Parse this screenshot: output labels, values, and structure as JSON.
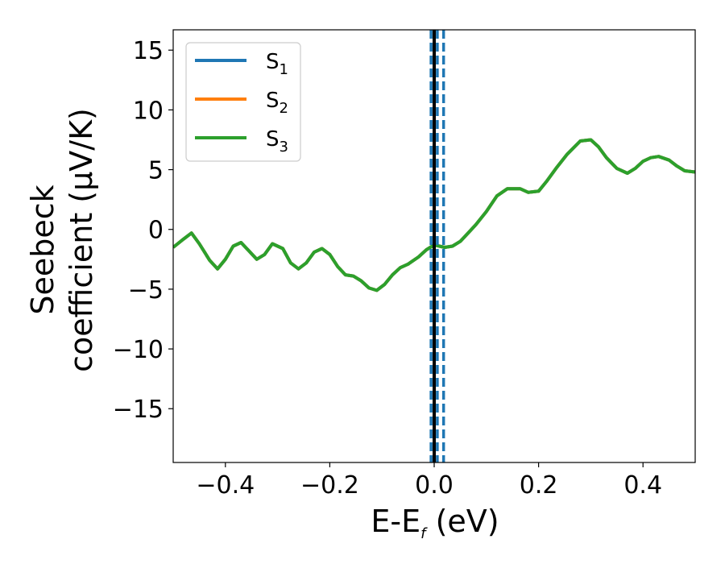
{
  "chart_data": {
    "type": "line",
    "xlabel": {
      "main": "E-E",
      "sub": "f",
      "suffix": " (eV)"
    },
    "ylabel": {
      "line1": "Seebeck",
      "line2": "coefficient  (μV/K)"
    },
    "xlim": [
      -0.5,
      0.5
    ],
    "ylim": [
      -19.5,
      16.7
    ],
    "xticks": [
      -0.4,
      -0.2,
      0.0,
      0.2,
      0.4
    ],
    "xtick_labels": [
      "−0.4",
      "−0.2",
      "0.0",
      "0.2",
      "0.4"
    ],
    "yticks": [
      -15,
      -10,
      -5,
      0,
      5,
      10,
      15
    ],
    "ytick_labels": [
      "−15",
      "−10",
      "−5",
      "0",
      "5",
      "10",
      "15"
    ],
    "legend_position": "top-left",
    "series": [
      {
        "name": "S",
        "sub": "1",
        "color": "#1f77b4",
        "x": [
          -0.5,
          -0.48,
          -0.465,
          -0.45,
          -0.43,
          -0.415,
          -0.4,
          -0.385,
          -0.37,
          -0.355,
          -0.34,
          -0.325,
          -0.31,
          -0.29,
          -0.275,
          -0.26,
          -0.245,
          -0.23,
          -0.215,
          -0.2,
          -0.185,
          -0.17,
          -0.155,
          -0.14,
          -0.125,
          -0.11,
          -0.095,
          -0.08,
          -0.065,
          -0.05,
          -0.03,
          -0.015,
          0.0,
          0.01,
          0.02,
          0.035,
          0.05,
          0.065,
          0.08,
          0.1,
          0.12,
          0.14,
          0.165,
          0.18,
          0.2,
          0.215,
          0.235,
          0.255,
          0.28,
          0.3,
          0.315,
          0.33,
          0.35,
          0.37,
          0.385,
          0.4,
          0.415,
          0.43,
          0.45,
          0.465,
          0.48,
          0.5
        ],
        "y": [
          -1.5,
          -0.8,
          -0.3,
          -1.2,
          -2.6,
          -3.3,
          -2.5,
          -1.4,
          -1.1,
          -1.8,
          -2.5,
          -2.1,
          -1.2,
          -1.6,
          -2.8,
          -3.3,
          -2.8,
          -1.9,
          -1.6,
          -2.1,
          -3.1,
          -3.8,
          -3.9,
          -4.3,
          -4.9,
          -5.1,
          -4.6,
          -3.8,
          -3.2,
          -2.9,
          -2.3,
          -1.7,
          -1.3,
          -1.4,
          -1.5,
          -1.4,
          -1.0,
          -0.3,
          0.4,
          1.5,
          2.8,
          3.4,
          3.4,
          3.1,
          3.2,
          4.0,
          5.2,
          6.3,
          7.4,
          7.5,
          6.9,
          6.0,
          5.1,
          4.7,
          5.1,
          5.7,
          6.0,
          6.1,
          5.8,
          5.3,
          4.9,
          4.8
        ]
      },
      {
        "name": "S",
        "sub": "2",
        "color": "#ff7f0e",
        "x": [
          -0.5,
          -0.48,
          -0.465,
          -0.45,
          -0.43,
          -0.415,
          -0.4,
          -0.385,
          -0.37,
          -0.355,
          -0.34,
          -0.325,
          -0.31,
          -0.29,
          -0.275,
          -0.26,
          -0.245,
          -0.23,
          -0.215,
          -0.2,
          -0.185,
          -0.17,
          -0.155,
          -0.14,
          -0.125,
          -0.11,
          -0.095,
          -0.08,
          -0.065,
          -0.05,
          -0.03,
          -0.015,
          0.0,
          0.01,
          0.02,
          0.035,
          0.05,
          0.065,
          0.08,
          0.1,
          0.12,
          0.14,
          0.165,
          0.18,
          0.2,
          0.215,
          0.235,
          0.255,
          0.28,
          0.3,
          0.315,
          0.33,
          0.35,
          0.37,
          0.385,
          0.4,
          0.415,
          0.43,
          0.45,
          0.465,
          0.48,
          0.5
        ],
        "y": [
          -1.5,
          -0.8,
          -0.3,
          -1.2,
          -2.6,
          -3.3,
          -2.5,
          -1.4,
          -1.1,
          -1.8,
          -2.5,
          -2.1,
          -1.2,
          -1.6,
          -2.8,
          -3.3,
          -2.8,
          -1.9,
          -1.6,
          -2.1,
          -3.1,
          -3.8,
          -3.9,
          -4.3,
          -4.9,
          -5.1,
          -4.6,
          -3.8,
          -3.2,
          -2.9,
          -2.3,
          -1.7,
          -1.3,
          -1.4,
          -1.5,
          -1.4,
          -1.0,
          -0.3,
          0.4,
          1.5,
          2.8,
          3.4,
          3.4,
          3.1,
          3.2,
          4.0,
          5.2,
          6.3,
          7.4,
          7.5,
          6.9,
          6.0,
          5.1,
          4.7,
          5.1,
          5.7,
          6.0,
          6.1,
          5.8,
          5.3,
          4.9,
          4.8
        ]
      },
      {
        "name": "S",
        "sub": "3",
        "color": "#2ca02c",
        "x": [
          -0.5,
          -0.48,
          -0.465,
          -0.45,
          -0.43,
          -0.415,
          -0.4,
          -0.385,
          -0.37,
          -0.355,
          -0.34,
          -0.325,
          -0.31,
          -0.29,
          -0.275,
          -0.26,
          -0.245,
          -0.23,
          -0.215,
          -0.2,
          -0.185,
          -0.17,
          -0.155,
          -0.14,
          -0.125,
          -0.11,
          -0.095,
          -0.08,
          -0.065,
          -0.05,
          -0.03,
          -0.015,
          0.0,
          0.01,
          0.02,
          0.035,
          0.05,
          0.065,
          0.08,
          0.1,
          0.12,
          0.14,
          0.165,
          0.18,
          0.2,
          0.215,
          0.235,
          0.255,
          0.28,
          0.3,
          0.315,
          0.33,
          0.35,
          0.37,
          0.385,
          0.4,
          0.415,
          0.43,
          0.45,
          0.465,
          0.48,
          0.5
        ],
        "y": [
          -1.5,
          -0.8,
          -0.3,
          -1.2,
          -2.6,
          -3.3,
          -2.5,
          -1.4,
          -1.1,
          -1.8,
          -2.5,
          -2.1,
          -1.2,
          -1.6,
          -2.8,
          -3.3,
          -2.8,
          -1.9,
          -1.6,
          -2.1,
          -3.1,
          -3.8,
          -3.9,
          -4.3,
          -4.9,
          -5.1,
          -4.6,
          -3.8,
          -3.2,
          -2.9,
          -2.3,
          -1.7,
          -1.3,
          -1.4,
          -1.5,
          -1.4,
          -1.0,
          -0.3,
          0.4,
          1.5,
          2.8,
          3.4,
          3.4,
          3.1,
          3.2,
          4.0,
          5.2,
          6.3,
          7.4,
          7.5,
          6.9,
          6.0,
          5.1,
          4.7,
          5.1,
          5.7,
          6.0,
          6.1,
          5.8,
          5.3,
          4.9,
          4.8
        ]
      }
    ],
    "vlines": [
      {
        "x": 0.0,
        "style": "solid",
        "color": "#000000"
      },
      {
        "x": -0.006,
        "style": "dashed",
        "color": "#1f77b4"
      },
      {
        "x": 0.006,
        "style": "dashed",
        "color": "#1f77b4"
      },
      {
        "x": 0.018,
        "style": "dashed",
        "color": "#1f77b4"
      }
    ]
  }
}
